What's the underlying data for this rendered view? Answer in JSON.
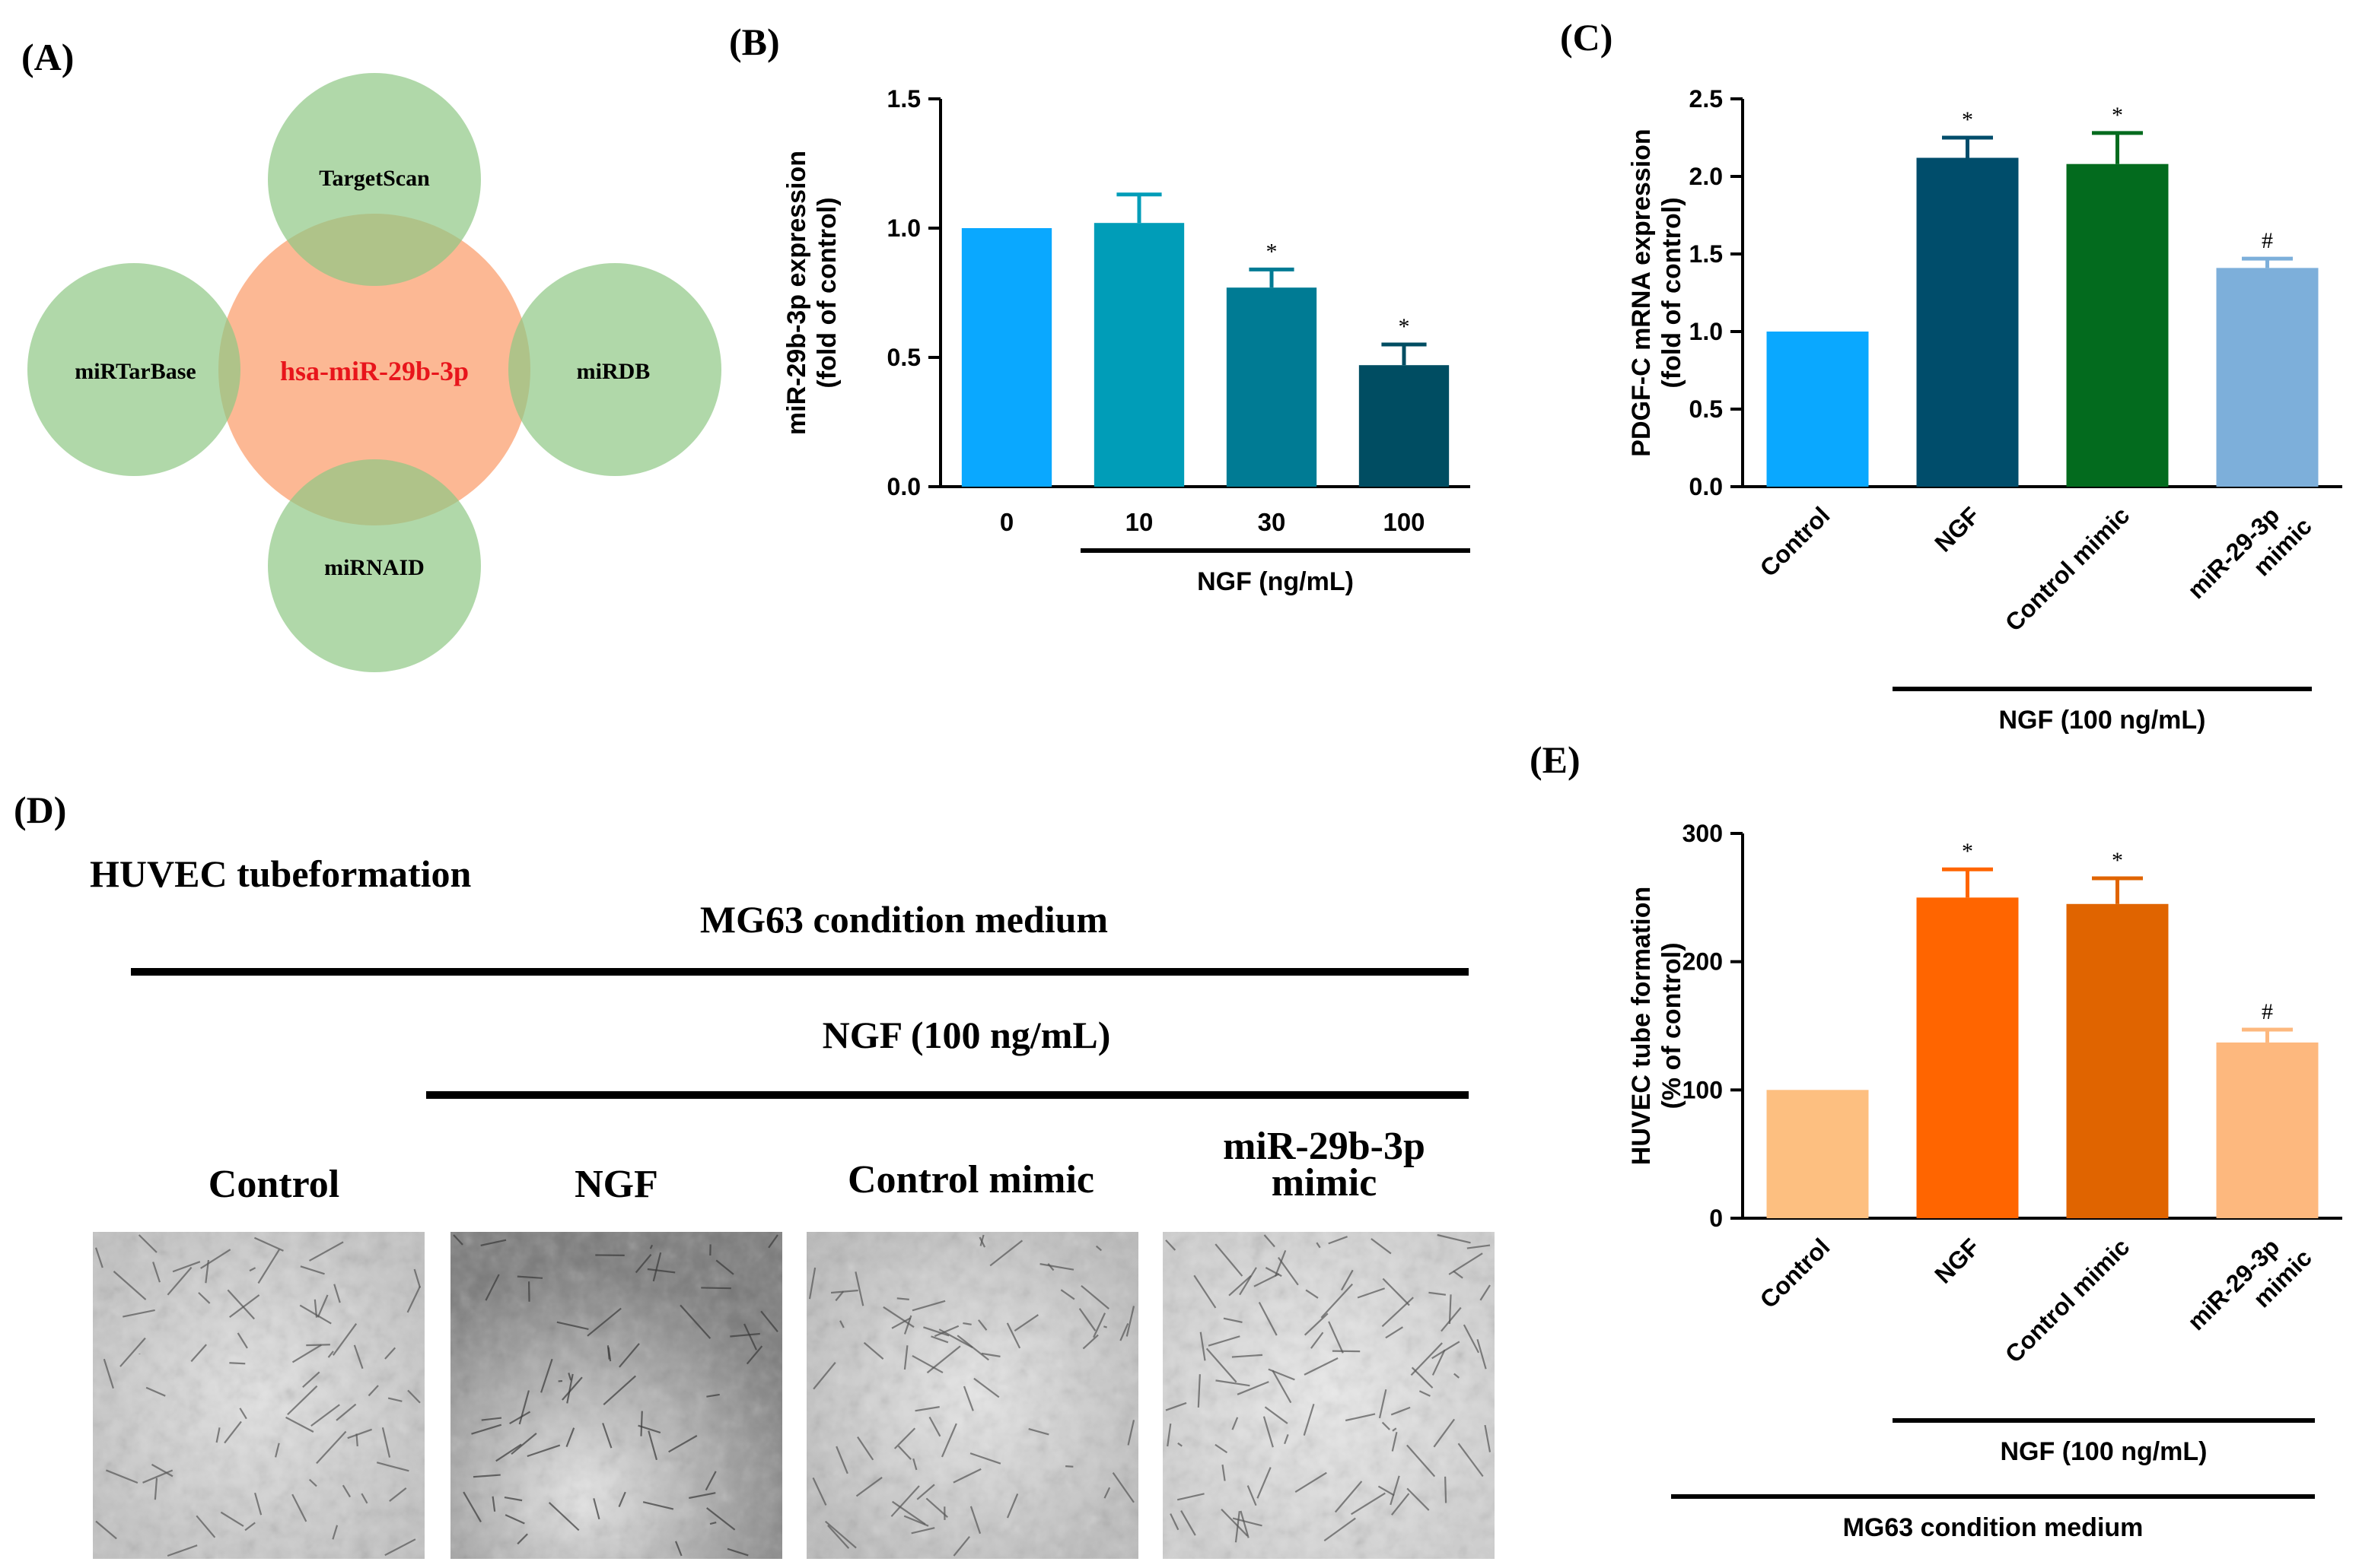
{
  "panels": {
    "A": {
      "label": "(A)"
    },
    "B": {
      "label": "(B)"
    },
    "C": {
      "label": "(C)"
    },
    "D": {
      "label": "(D)"
    },
    "E": {
      "label": "(E)"
    }
  },
  "venn": {
    "center": "hsa-miR-29b-3p",
    "top": "TargetScan",
    "left": "miRTarBase",
    "right": "miRDB",
    "bottom": "miRNAID",
    "colors": {
      "center": "#FCB894",
      "outer": "#A8D5A0",
      "center_text": "#E8151B"
    }
  },
  "tube": {
    "title": "HUVEC tubeformation",
    "medium_label": "MG63 condition medium",
    "ngf_label": "NGF (100 ng/mL)",
    "columns": [
      "Control",
      "NGF",
      "Control mimic",
      "miR-29b-3p mimic"
    ]
  },
  "chart_data": [
    {
      "id": "B",
      "type": "bar",
      "categories": [
        "0",
        "10",
        "30",
        "100"
      ],
      "values": [
        1.0,
        1.02,
        0.77,
        0.47
      ],
      "errors": [
        0,
        0.11,
        0.07,
        0.08
      ],
      "significance": [
        "",
        "",
        "*",
        "*"
      ],
      "colors": [
        "#0AA8FF",
        "#009DB8",
        "#007B94",
        "#004D62"
      ],
      "ylabel": [
        "miR-29b-3p expression",
        "(fold of control)"
      ],
      "ylim": [
        0,
        1.5
      ],
      "yticks": [
        "0.0",
        "0.5",
        "1.0",
        "1.5"
      ],
      "group_label": "NGF (ng/mL)"
    },
    {
      "id": "C",
      "type": "bar",
      "categories": [
        "Control",
        "NGF",
        "Control mimic",
        "miR-29-3p mimic"
      ],
      "values": [
        1.0,
        2.12,
        2.08,
        1.41
      ],
      "errors": [
        0,
        0.13,
        0.2,
        0.06
      ],
      "significance": [
        "",
        "*",
        "*",
        "#"
      ],
      "colors": [
        "#0AA8FF",
        "#004D6B",
        "#036B1E",
        "#7DAFDA"
      ],
      "ylabel": [
        "PDGF-C mRNA expression",
        "(fold of control)"
      ],
      "ylim": [
        0,
        2.5
      ],
      "yticks": [
        "0.0",
        "0.5",
        "1.0",
        "1.5",
        "2.0",
        "2.5"
      ],
      "group_label": "NGF (100 ng/mL)"
    },
    {
      "id": "E",
      "type": "bar",
      "categories": [
        "Control",
        "NGF",
        "Control mimic",
        "miR-29-3p mimic"
      ],
      "values": [
        100,
        250,
        245,
        137
      ],
      "errors": [
        0,
        22,
        20,
        10
      ],
      "significance": [
        "",
        "*",
        "*",
        "#"
      ],
      "colors": [
        "#FDBF80",
        "#FF6500",
        "#E06400",
        "#FDB87E"
      ],
      "ylabel": [
        "HUVEC tube formation",
        "(% of control)"
      ],
      "ylim": [
        0,
        300
      ],
      "yticks": [
        "0",
        "100",
        "200",
        "300"
      ],
      "group_label": "NGF (100 ng/mL)",
      "group_label_2": "MG63 condition medium"
    }
  ]
}
